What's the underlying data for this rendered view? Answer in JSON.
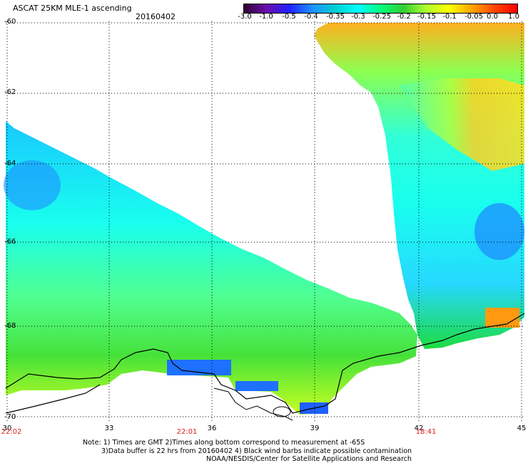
{
  "header": {
    "title": "ASCAT 25KM MLE-1 ascending",
    "date": "20160402"
  },
  "colorbar": {
    "labels": [
      "-3.0",
      "-1.0",
      "-0.5",
      "-0.4",
      "-0.35",
      "-0.3",
      "-0.25",
      "-0.2",
      "-0.15",
      "-0.1",
      "-0.05",
      "0.0",
      "1.0"
    ],
    "stops": [
      "#300030",
      "#6a0dad",
      "#2020ff",
      "#1e90ff",
      "#00ced1",
      "#00ffff",
      "#00ff7f",
      "#32cd32",
      "#adff2f",
      "#ffff00",
      "#ffa500",
      "#ff4500",
      "#ff0000"
    ]
  },
  "axes": {
    "lat_labels": [
      "-60",
      "-62",
      "-64",
      "-66",
      "-68",
      "-70"
    ],
    "lon_labels": [
      "30",
      "33",
      "36",
      "39",
      "42",
      "45"
    ],
    "time_labels": [
      "22:02",
      "22:01",
      "18:41"
    ]
  },
  "notes": {
    "line1": "Note: 1) Times are GMT 2)Times along bottom correspond to measurement at -65S",
    "line2": "3)Data buffer is 22 hrs from 20160402 4) Black wind barbs indicate possible contamination",
    "line3": "NOAA/NESDIS/Center for Satellite Applications and Research"
  }
}
